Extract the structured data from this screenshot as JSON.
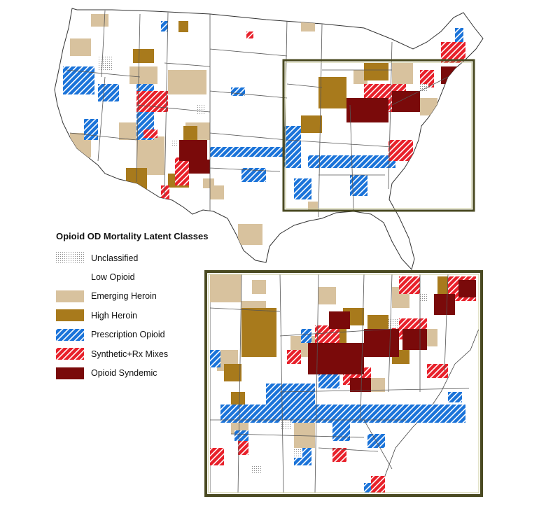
{
  "legend": {
    "title": "Opioid OD Mortality Latent Classes",
    "items": [
      {
        "key": "unclassified",
        "label": "Unclassified",
        "color": "#9a9a9a",
        "pattern": "dots"
      },
      {
        "key": "low_opioid",
        "label": "Low Opioid",
        "color": "#ffffff",
        "pattern": "none"
      },
      {
        "key": "emerging_heroin",
        "label": "Emerging Heroin",
        "color": "#d8c29e",
        "pattern": "solid"
      },
      {
        "key": "high_heroin",
        "label": "High Heroin",
        "color": "#a87a1c",
        "pattern": "solid"
      },
      {
        "key": "prescription_opioid",
        "label": "Prescription Opioid",
        "color": "#1a73d9",
        "pattern": "hatch-white"
      },
      {
        "key": "synthetic_rx",
        "label": "Synthetic+Rx Mixes",
        "color": "#e8202a",
        "pattern": "hatch-white"
      },
      {
        "key": "opioid_syndemic",
        "label": "Opioid Syndemic",
        "color": "#7a0a0a",
        "pattern": "solid"
      }
    ]
  },
  "maps": {
    "national": "contiguous-us-county-map",
    "inset": "eastern-us-county-map-zoom"
  }
}
